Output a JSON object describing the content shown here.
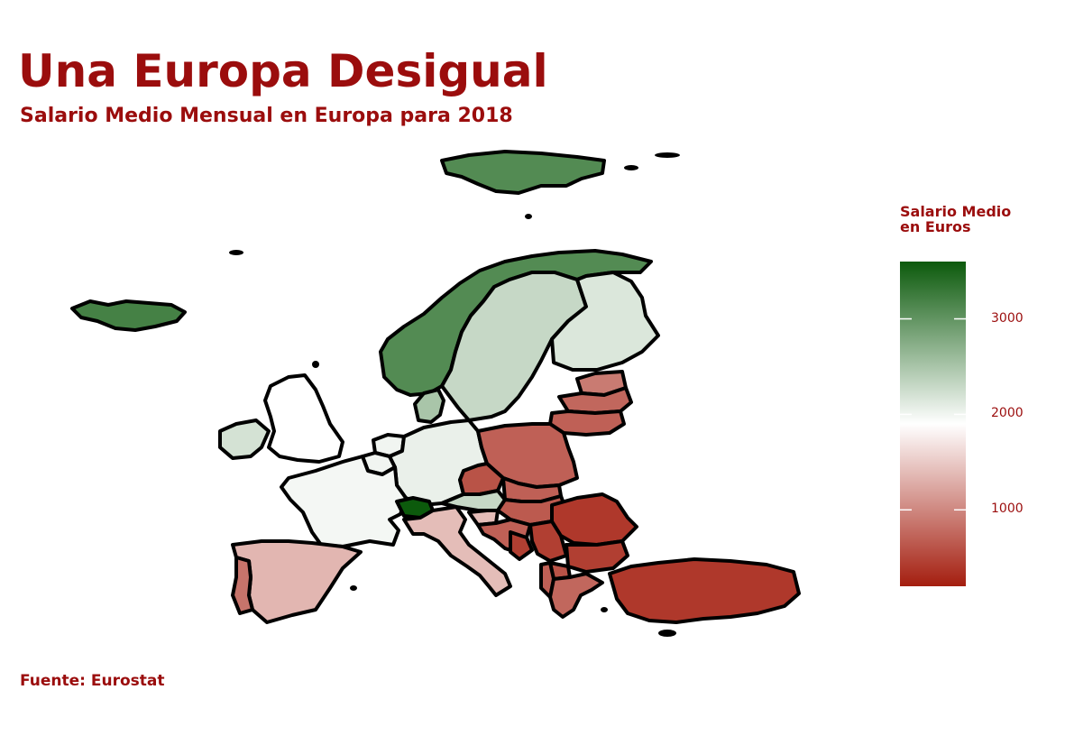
{
  "title": "Una Europa Desigual",
  "subtitle": "Salario Medio Mensual en Europa para 2018",
  "caption": "Fuente: Eurostat",
  "legend": {
    "title_line1": "Salario Medio",
    "title_line2": "en Euros",
    "min": 200,
    "max": 3600,
    "ticks": [
      {
        "value": 3000,
        "label": "3000"
      },
      {
        "value": 2000,
        "label": "2000"
      },
      {
        "value": 1000,
        "label": "1000"
      }
    ],
    "colors": {
      "low": "#a41e0f",
      "mid": "#ffffff",
      "high": "#0c5a0c"
    }
  },
  "chart_data": {
    "type": "choropleth",
    "title": "Una Europa Desigual",
    "subtitle": "Salario Medio Mensual en Europa para 2018",
    "value_range": [
      200,
      3600
    ],
    "regions": [
      {
        "name": "Svalbard",
        "value": 3100
      },
      {
        "name": "Iceland",
        "value": 3200
      },
      {
        "name": "Norway",
        "value": 3100
      },
      {
        "name": "Sweden",
        "value": 2300
      },
      {
        "name": "Finland",
        "value": 2150
      },
      {
        "name": "Denmark",
        "value": 2500
      },
      {
        "name": "Estonia",
        "value": 900
      },
      {
        "name": "Latvia",
        "value": 750
      },
      {
        "name": "Lithuania",
        "value": 700
      },
      {
        "name": "Ireland",
        "value": 2200
      },
      {
        "name": "United Kingdom",
        "value": 1900
      },
      {
        "name": "Netherlands",
        "value": 2000
      },
      {
        "name": "Belgium",
        "value": 2000
      },
      {
        "name": "Germany",
        "value": 2050
      },
      {
        "name": "France",
        "value": 1980
      },
      {
        "name": "Poland",
        "value": 700
      },
      {
        "name": "Czechia",
        "value": 600
      },
      {
        "name": "Austria",
        "value": 2300
      },
      {
        "name": "Switzerland",
        "value": 3600
      },
      {
        "name": "Slovakia",
        "value": 700
      },
      {
        "name": "Hungary",
        "value": 650
      },
      {
        "name": "Slovenia",
        "value": 1400
      },
      {
        "name": "Croatia",
        "value": 700
      },
      {
        "name": "Bosnia and Herzegovina",
        "value": 450
      },
      {
        "name": "Serbia",
        "value": 450
      },
      {
        "name": "Romania",
        "value": 400
      },
      {
        "name": "Bulgaria",
        "value": 450
      },
      {
        "name": "North Macedonia",
        "value": 600
      },
      {
        "name": "Albania",
        "value": 700
      },
      {
        "name": "Greece",
        "value": 750
      },
      {
        "name": "Italy",
        "value": 1400
      },
      {
        "name": "Spain",
        "value": 1350
      },
      {
        "name": "Portugal",
        "value": 850
      },
      {
        "name": "Turkey",
        "value": 400
      }
    ]
  }
}
